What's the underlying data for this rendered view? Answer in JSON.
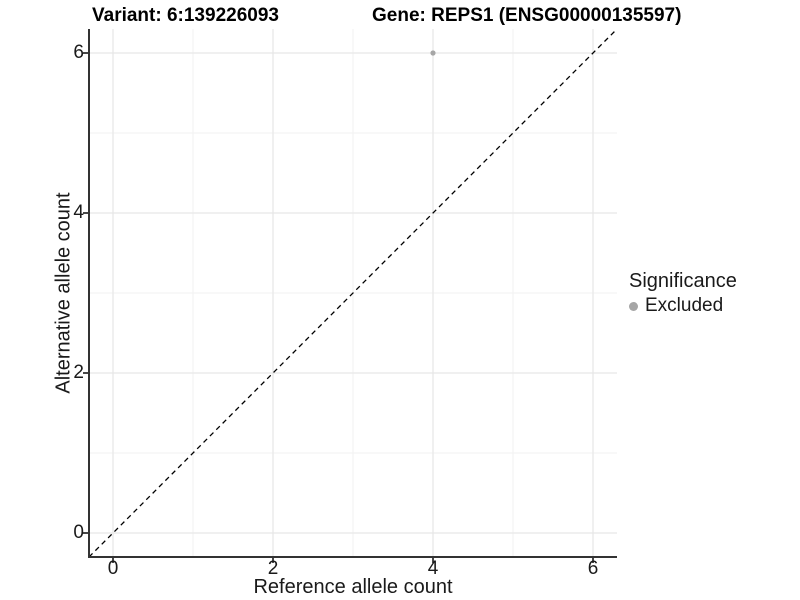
{
  "chart_data": {
    "type": "scatter",
    "titles": [
      "Variant: 6:139226093",
      "Gene: REPS1 (ENSG00000135597)"
    ],
    "xlabel": "Reference allele count",
    "ylabel": "Alternative allele count",
    "xlim": [
      -0.3,
      6.3
    ],
    "ylim": [
      -0.3,
      6.3
    ],
    "x_major_ticks": [
      0,
      2,
      4,
      6
    ],
    "y_major_ticks": [
      0,
      2,
      4,
      6
    ],
    "x_minor_ticks": [
      1,
      3,
      5
    ],
    "y_minor_ticks": [
      1,
      3,
      5
    ],
    "grid": "major and minor gridlines on white panel",
    "series": [
      {
        "name": "Excluded",
        "marker": "circle",
        "color": "#a6a6a6",
        "points": [
          {
            "x": 4,
            "y": 6
          }
        ]
      }
    ],
    "reference_line": {
      "kind": "identity y=x",
      "style": "dashed",
      "color": "#000000",
      "x0": -0.3,
      "y0": -0.3,
      "x1": 6.3,
      "y1": 6.3
    },
    "legend": {
      "title": "Significance",
      "position": "right",
      "entries": [
        {
          "label": "Excluded",
          "color": "#a6a6a6"
        }
      ]
    }
  },
  "colors": {
    "background": "#ffffff",
    "grid_major": "#e7e7e7",
    "grid_minor": "#f2f2f2",
    "axis_line": "#333333",
    "tick_mark": "#333333",
    "point": "#a6a6a6",
    "dashed_line": "#000000",
    "text": "#1a1a1a"
  }
}
